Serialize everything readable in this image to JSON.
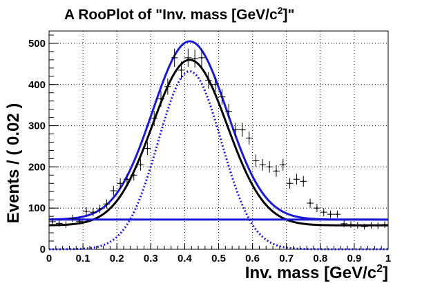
{
  "chart_data": {
    "type": "scatter",
    "title": "A RooPlot of \"Inv. mass [GeV/c²]\"",
    "title_main": "A RooPlot of \"Inv. mass [GeV/c",
    "title_sup": "2",
    "title_end": "]\"",
    "xlabel": "Inv. mass [GeV/c²]",
    "xlabel_main": "Inv. mass [GeV/c",
    "xlabel_sup": "2",
    "xlabel_end": "]",
    "ylabel": "Events / ( 0.02 )",
    "xlim": [
      0,
      1
    ],
    "ylim": [
      0,
      530
    ],
    "grid": true,
    "x_ticks": [
      0,
      0.1,
      0.2,
      0.3,
      0.4,
      0.5,
      0.6,
      0.7,
      0.8,
      0.9,
      1
    ],
    "x_tick_labels": [
      "0",
      "0.1",
      "0.2",
      "0.3",
      "0.4",
      "0.5",
      "0.6",
      "0.7",
      "0.8",
      "0.9",
      "1"
    ],
    "y_ticks": [
      0,
      100,
      200,
      300,
      400,
      500
    ],
    "y_tick_labels": [
      "0",
      "100",
      "200",
      "300",
      "400",
      "500"
    ],
    "data_points": {
      "x": [
        0.01,
        0.03,
        0.05,
        0.07,
        0.09,
        0.11,
        0.13,
        0.15,
        0.17,
        0.19,
        0.21,
        0.23,
        0.25,
        0.27,
        0.29,
        0.31,
        0.33,
        0.35,
        0.37,
        0.39,
        0.41,
        0.43,
        0.45,
        0.47,
        0.49,
        0.51,
        0.53,
        0.55,
        0.57,
        0.59,
        0.61,
        0.63,
        0.65,
        0.67,
        0.69,
        0.71,
        0.73,
        0.75,
        0.77,
        0.79,
        0.81,
        0.83,
        0.85,
        0.87,
        0.89,
        0.91,
        0.93,
        0.95,
        0.97,
        0.99
      ],
      "y": [
        67,
        63,
        60,
        75,
        68,
        92,
        90,
        98,
        110,
        142,
        160,
        170,
        180,
        205,
        245,
        318,
        365,
        395,
        465,
        435,
        465,
        463,
        465,
        410,
        400,
        370,
        335,
        290,
        290,
        270,
        215,
        205,
        200,
        190,
        205,
        160,
        170,
        165,
        112,
        100,
        90,
        85,
        85,
        62,
        60,
        58,
        55,
        58,
        57,
        60
      ],
      "err": [
        8,
        8,
        8,
        9,
        8,
        10,
        10,
        10,
        11,
        12,
        13,
        13,
        13,
        14,
        16,
        18,
        19,
        20,
        22,
        21,
        22,
        22,
        22,
        20,
        20,
        19,
        18,
        17,
        17,
        16,
        15,
        14,
        14,
        14,
        14,
        13,
        13,
        13,
        11,
        10,
        10,
        9,
        9,
        8,
        8,
        8,
        7,
        8,
        8,
        8
      ]
    },
    "series": [
      {
        "style": "solid",
        "color": "#000000",
        "peak": 460,
        "mean": 0.415,
        "sigma": 0.11,
        "baseline": 58
      },
      {
        "style": "solid",
        "color": "#1a1ad6",
        "peak": 505,
        "mean": 0.415,
        "sigma": 0.11,
        "baseline": 72
      },
      {
        "style": "solid-flat",
        "color": "#1a1ad6",
        "level": 72
      },
      {
        "style": "dotted",
        "color": "#1a1ad6",
        "peak": 432,
        "mean": 0.415,
        "sigma": 0.093,
        "baseline": 0
      }
    ]
  }
}
